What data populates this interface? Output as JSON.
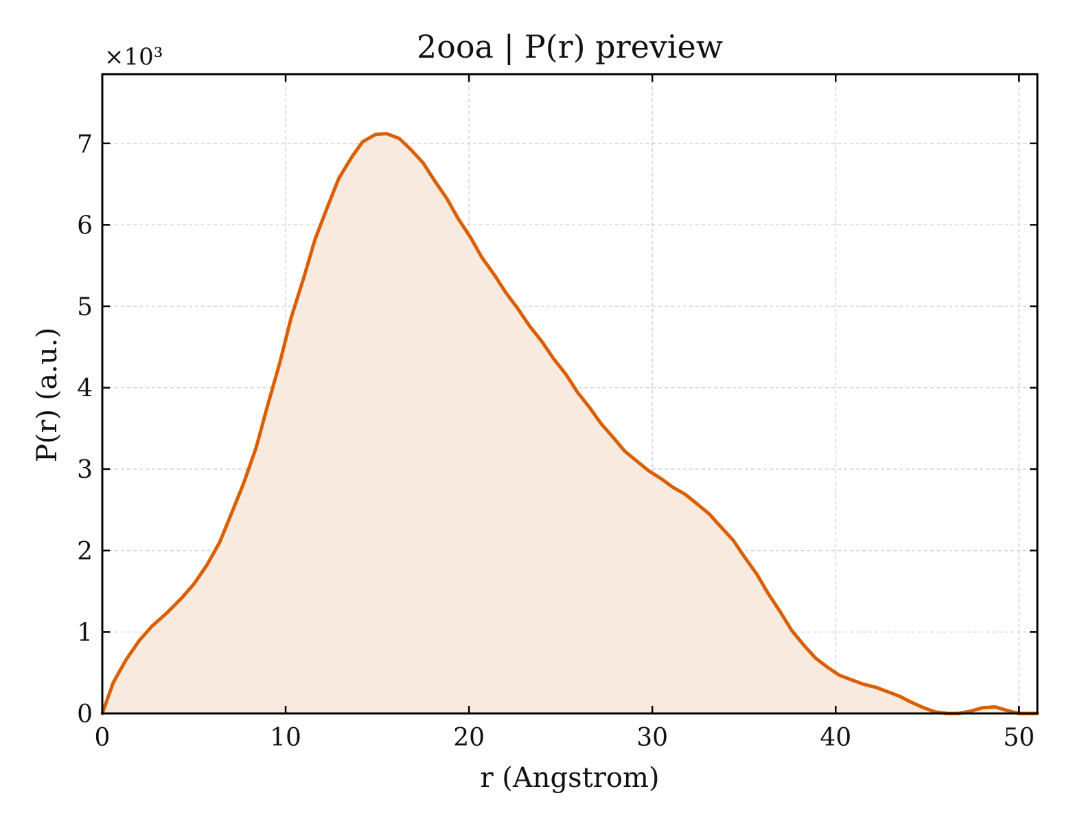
{
  "chart_data": {
    "type": "area",
    "title": "2ooa | P(r) preview",
    "xlabel": "r (Angstrom)",
    "ylabel": "P(r) (a.u.)",
    "y_multiplier_label": "×10³",
    "xlim": [
      0,
      51
    ],
    "ylim": [
      0,
      7.85
    ],
    "xticks": [
      0,
      10,
      20,
      30,
      40,
      50
    ],
    "yticks": [
      0,
      1,
      2,
      3,
      4,
      5,
      6,
      7
    ],
    "grid": true,
    "colors": {
      "line": "#d95f02",
      "fill": "#f8eadf",
      "grid": "#cccccc",
      "axes": "#000000"
    },
    "series": [
      {
        "x": [
          0,
          0.6,
          1.3,
          2.0,
          2.7,
          3.5,
          4.3,
          5.0,
          5.7,
          6.4,
          7.0,
          7.7,
          8.4,
          9.0,
          9.7,
          10.3,
          11.0,
          11.6,
          12.3,
          12.9,
          13.6,
          14.2,
          14.9,
          15.5,
          16.2,
          16.8,
          17.5,
          18.1,
          18.8,
          19.4,
          20.1,
          20.7,
          21.4,
          22.0,
          22.7,
          23.3,
          24.0,
          24.6,
          25.3,
          25.9,
          26.6,
          27.2,
          27.9,
          28.5,
          29.2,
          29.8,
          30.5,
          31.1,
          31.8,
          32.4,
          33.1,
          33.7,
          34.4,
          35.0,
          35.7,
          36.3,
          37.0,
          37.6,
          38.3,
          38.9,
          39.6,
          40.2,
          40.9,
          41.5,
          42.2,
          42.8,
          43.5,
          44.1,
          44.8,
          45.4,
          46.1,
          46.7,
          47.4,
          48.0,
          48.7,
          49.3,
          50.0,
          50.6,
          51.0
        ],
        "values": [
          0,
          0.38,
          0.66,
          0.89,
          1.07,
          1.23,
          1.41,
          1.59,
          1.82,
          2.1,
          2.43,
          2.82,
          3.27,
          3.77,
          4.32,
          4.86,
          5.36,
          5.82,
          6.23,
          6.57,
          6.83,
          7.02,
          7.11,
          7.12,
          7.06,
          6.93,
          6.76,
          6.55,
          6.32,
          6.08,
          5.84,
          5.6,
          5.38,
          5.17,
          4.96,
          4.76,
          4.56,
          4.36,
          4.16,
          3.95,
          3.75,
          3.56,
          3.38,
          3.22,
          3.09,
          2.98,
          2.88,
          2.78,
          2.69,
          2.58,
          2.45,
          2.3,
          2.13,
          1.93,
          1.71,
          1.48,
          1.24,
          1.02,
          0.83,
          0.68,
          0.56,
          0.47,
          0.41,
          0.36,
          0.32,
          0.27,
          0.21,
          0.14,
          0.07,
          0.02,
          0.0,
          0.0,
          0.03,
          0.07,
          0.08,
          0.04,
          0.0,
          0.0,
          0.0
        ]
      }
    ]
  }
}
